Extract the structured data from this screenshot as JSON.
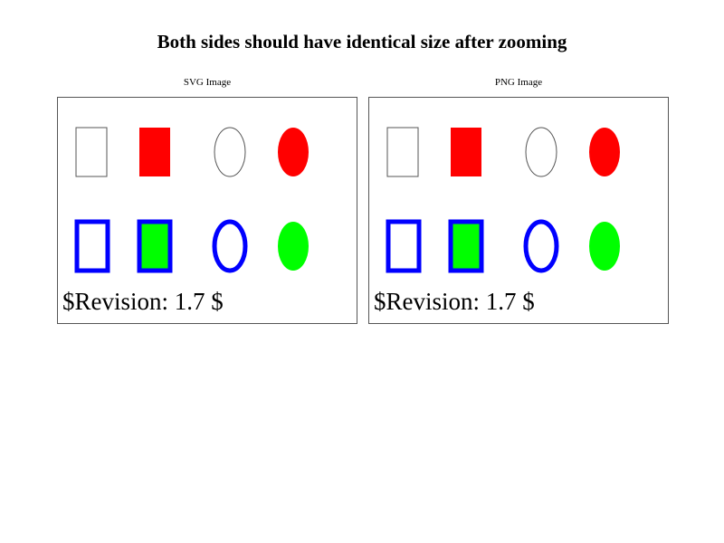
{
  "page": {
    "title": "Both sides should have identical size after zooming"
  },
  "panels": {
    "left": {
      "caption": "SVG Image",
      "revision": "$Revision: 1.7 $"
    },
    "right": {
      "caption": "PNG Image",
      "revision": "$Revision: 1.7 $"
    }
  },
  "colors": {
    "red": "#ff0000",
    "blue": "#0000ff",
    "green": "#00ff00",
    "outline": "#555555"
  },
  "shapes": {
    "top_row": [
      "outlined-rectangle",
      "red-rectangle",
      "outlined-ellipse",
      "red-ellipse"
    ],
    "bottom_row": [
      "blue-outlined-rectangle",
      "green-rectangle-blue-outline",
      "blue-outlined-ellipse",
      "green-ellipse"
    ]
  }
}
